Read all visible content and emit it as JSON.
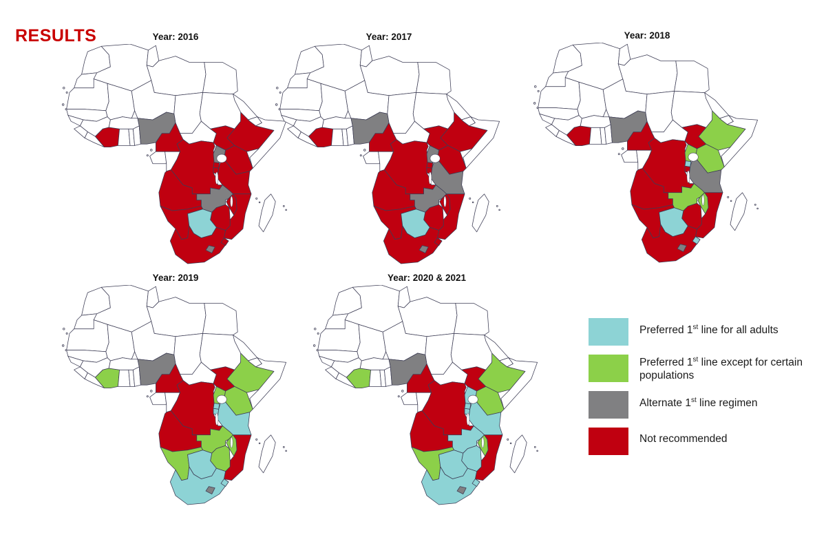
{
  "title": "RESULTS",
  "legend": {
    "items_note": "categories listed in chart_data.categories"
  },
  "chart_data": {
    "type": "choropleth",
    "region": "Africa",
    "title": "RESULTS",
    "subtitle": "",
    "legend_position": "bottom-right",
    "uncolored_fill": "#ffffff",
    "border_color": "#3d3d55",
    "categories": [
      {
        "id": "preferred_1st_line_all_adults",
        "label": "Preferred 1st line for all adults",
        "color": "#8DD3D5"
      },
      {
        "id": "preferred_1st_line_except",
        "label": "Preferred 1st line except for certain populations",
        "color": "#8CD049"
      },
      {
        "id": "alternate_1st_line",
        "label": "Alternate 1st line regimen",
        "color": "#808082"
      },
      {
        "id": "not_recommended",
        "label": "Not recommended",
        "color": "#C00010"
      }
    ],
    "maps": [
      {
        "title": "Year: 2016",
        "classification": {
          "preferred_1st_line_all_adults": [
            "Botswana"
          ],
          "preferred_1st_line_except": [],
          "alternate_1st_line": [
            "Nigeria",
            "Uganda",
            "Zambia",
            "Lesotho"
          ],
          "not_recommended": [
            "Côte d'Ivoire",
            "Cameroon",
            "South Sudan",
            "Ethiopia",
            "Kenya",
            "Rwanda",
            "Burundi",
            "DR Congo",
            "Tanzania",
            "Angola",
            "Namibia",
            "Zimbabwe",
            "Mozambique",
            "Malawi",
            "South Africa",
            "Eswatini"
          ]
        }
      },
      {
        "title": "Year: 2017",
        "classification": {
          "preferred_1st_line_all_adults": [
            "Botswana"
          ],
          "preferred_1st_line_except": [],
          "alternate_1st_line": [
            "Nigeria",
            "Uganda",
            "Tanzania",
            "Zambia",
            "Lesotho"
          ],
          "not_recommended": [
            "Côte d'Ivoire",
            "Cameroon",
            "South Sudan",
            "Ethiopia",
            "Kenya",
            "Rwanda",
            "Burundi",
            "DR Congo",
            "Angola",
            "Namibia",
            "Zimbabwe",
            "Mozambique",
            "Malawi",
            "South Africa",
            "Eswatini"
          ]
        }
      },
      {
        "title": "Year: 2018",
        "classification": {
          "preferred_1st_line_all_adults": [
            "Botswana",
            "Rwanda",
            "Eswatini"
          ],
          "preferred_1st_line_except": [
            "Ethiopia",
            "Kenya",
            "Uganda",
            "Zambia",
            "Malawi"
          ],
          "alternate_1st_line": [
            "Nigeria",
            "Tanzania",
            "Lesotho"
          ],
          "not_recommended": [
            "Côte d'Ivoire",
            "Cameroon",
            "South Sudan",
            "DR Congo",
            "Burundi",
            "Angola",
            "Namibia",
            "Zimbabwe",
            "Mozambique",
            "South Africa"
          ]
        }
      },
      {
        "title": "Year: 2019",
        "classification": {
          "preferred_1st_line_all_adults": [
            "Botswana",
            "South Africa",
            "Tanzania",
            "Rwanda",
            "Burundi",
            "Eswatini"
          ],
          "preferred_1st_line_except": [
            "Côte d'Ivoire",
            "Ethiopia",
            "Kenya",
            "Uganda",
            "Zambia",
            "Zimbabwe",
            "Namibia",
            "Malawi"
          ],
          "alternate_1st_line": [
            "Nigeria",
            "Lesotho"
          ],
          "not_recommended": [
            "Cameroon",
            "South Sudan",
            "DR Congo",
            "Angola",
            "Mozambique"
          ]
        }
      },
      {
        "title": "Year: 2020 & 2021",
        "classification": {
          "preferred_1st_line_all_adults": [
            "Botswana",
            "South Africa",
            "Tanzania",
            "Uganda",
            "Zambia",
            "Zimbabwe",
            "Rwanda",
            "Burundi",
            "Eswatini"
          ],
          "preferred_1st_line_except": [
            "Côte d'Ivoire",
            "Ethiopia",
            "Kenya",
            "Malawi",
            "Namibia"
          ],
          "alternate_1st_line": [
            "Nigeria",
            "Lesotho"
          ],
          "not_recommended": [
            "Cameroon",
            "South Sudan",
            "DR Congo",
            "Angola",
            "Mozambique"
          ]
        }
      }
    ]
  }
}
